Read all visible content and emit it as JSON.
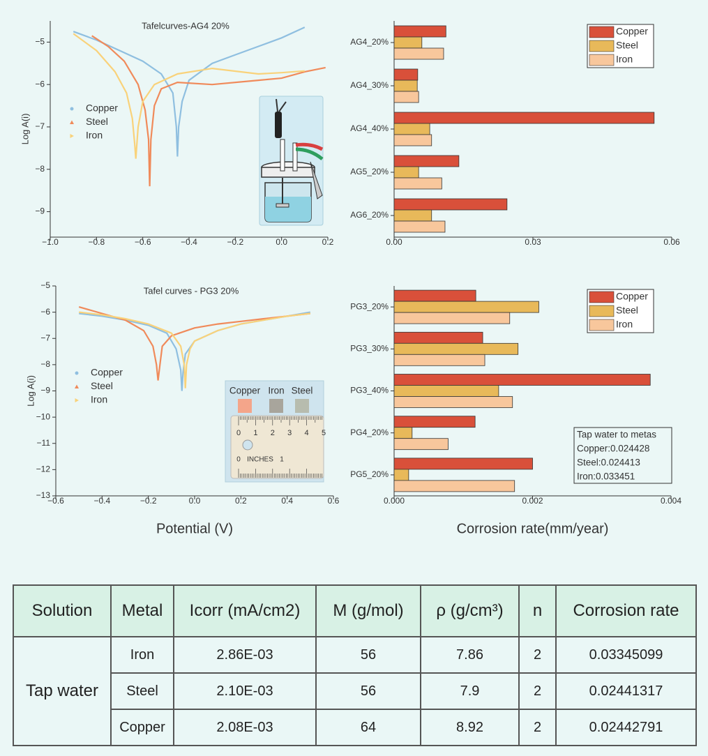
{
  "chart_data": [
    {
      "type": "line",
      "title": "Tafelcurves-AG4 20%",
      "ylabel": "Log A(i)",
      "xlim": [
        -1.0,
        0.2
      ],
      "xticks": [
        {
          "value": -1.0,
          "label": "−1.0"
        },
        {
          "value": -0.8,
          "label": "−0.8"
        },
        {
          "value": -0.6,
          "label": "−0.6"
        },
        {
          "value": -0.4,
          "label": "−0.4"
        },
        {
          "value": -0.2,
          "label": "−0.2"
        },
        {
          "value": 0.0,
          "label": "0.0"
        },
        0.2
      ],
      "ylim": [
        -9.6,
        -4.5
      ],
      "yticks": [
        {
          "value": -5,
          "label": "−5"
        },
        {
          "value": -6,
          "label": "−6"
        },
        {
          "value": -7,
          "label": "−7"
        },
        {
          "value": -8,
          "label": "−8"
        },
        {
          "value": -9,
          "label": "−9"
        }
      ],
      "legend": "center left",
      "series": [
        {
          "name": "Copper",
          "color": "#8fbfe0",
          "marker": "circle",
          "x": [
            -0.9,
            -0.8,
            -0.7,
            -0.6,
            -0.52,
            -0.47,
            -0.455,
            -0.45,
            -0.445,
            -0.43,
            -0.4,
            -0.3,
            -0.2,
            -0.1,
            0.0,
            0.1
          ],
          "values": [
            -4.75,
            -4.95,
            -5.2,
            -5.45,
            -5.75,
            -6.2,
            -7.0,
            -7.7,
            -7.0,
            -6.4,
            -5.9,
            -5.5,
            -5.3,
            -5.1,
            -4.9,
            -4.65
          ]
        },
        {
          "name": "Steel",
          "color": "#f08a5a",
          "marker": "triangle",
          "x": [
            -0.82,
            -0.75,
            -0.68,
            -0.62,
            -0.59,
            -0.575,
            -0.57,
            -0.565,
            -0.55,
            -0.52,
            -0.45,
            -0.3,
            -0.1,
            0.0,
            0.1,
            0.19
          ],
          "values": [
            -4.85,
            -5.1,
            -5.45,
            -6.0,
            -6.6,
            -7.3,
            -8.4,
            -7.3,
            -6.5,
            -6.1,
            -5.95,
            -6.0,
            -5.9,
            -5.85,
            -5.7,
            -5.6
          ]
        },
        {
          "name": "Iron",
          "color": "#f9d27a",
          "marker": "tri-right",
          "x": [
            -0.9,
            -0.8,
            -0.72,
            -0.67,
            -0.645,
            -0.635,
            -0.63,
            -0.62,
            -0.6,
            -0.55,
            -0.45,
            -0.3,
            -0.1,
            0.0,
            0.1
          ],
          "values": [
            -4.8,
            -5.2,
            -5.7,
            -6.2,
            -6.8,
            -7.4,
            -7.75,
            -7.0,
            -6.4,
            -6.0,
            -5.75,
            -5.62,
            -5.75,
            -5.72,
            -5.68
          ]
        }
      ]
    },
    {
      "type": "hbar",
      "categories": [
        "AG4_20%",
        "AG4_30%",
        "AG4_40%",
        "AG5_20%",
        "AG6_20%"
      ],
      "xlim": [
        0,
        0.06
      ],
      "xticks": [
        {
          "value": 0,
          "label": "0.00"
        },
        0.03,
        0.06
      ],
      "legend": "upper right",
      "series": [
        {
          "name": "Copper",
          "color": "#d9503a",
          "values": [
            0.0112,
            0.0051,
            0.0562,
            0.014,
            0.0244
          ]
        },
        {
          "name": "Steel",
          "color": "#e8b95a",
          "values": [
            0.006,
            0.005,
            0.0077,
            0.0053,
            0.0081
          ]
        },
        {
          "name": "Iron",
          "color": "#f8c79c",
          "values": [
            0.0107,
            0.0053,
            0.0081,
            0.0103,
            0.011
          ]
        }
      ]
    },
    {
      "type": "line",
      "title": "Tafel curves - PG3 20%",
      "ylabel": "Log A(i)",
      "xlabel": "Potential (V)",
      "xlim": [
        -0.6,
        0.6
      ],
      "xticks": [
        {
          "value": -0.6,
          "label": "−0.6"
        },
        {
          "value": -0.4,
          "label": "−0.4"
        },
        {
          "value": -0.2,
          "label": "−0.2"
        },
        {
          "value": 0.0,
          "label": "0.0"
        },
        0.2,
        0.4,
        0.6
      ],
      "ylim": [
        -13,
        -5
      ],
      "yticks": [
        {
          "value": -5,
          "label": "−5"
        },
        {
          "value": -6,
          "label": "−6"
        },
        {
          "value": -7,
          "label": "−7"
        },
        {
          "value": -8,
          "label": "−8"
        },
        {
          "value": -9,
          "label": "−9"
        },
        {
          "value": -10,
          "label": "−10"
        },
        {
          "value": -11,
          "label": "−11"
        },
        {
          "value": -12,
          "label": "−12"
        },
        {
          "value": -13,
          "label": "−13"
        }
      ],
      "legend": "center left",
      "inset_labels": [
        "Copper",
        "Iron",
        "Steel"
      ],
      "ruler_labels": [
        "0",
        "1",
        "2",
        "3",
        "4",
        "5"
      ],
      "ruler_inch_labels": [
        "0",
        "INCHES",
        "1"
      ],
      "series": [
        {
          "name": "Copper",
          "color": "#8fbfe0",
          "marker": "circle",
          "x": [
            -0.5,
            -0.4,
            -0.3,
            -0.2,
            -0.12,
            -0.08,
            -0.06,
            -0.055,
            -0.05,
            -0.04,
            0.0,
            0.1,
            0.2,
            0.3,
            0.4,
            0.5
          ],
          "values": [
            -6.05,
            -6.15,
            -6.3,
            -6.5,
            -6.8,
            -7.4,
            -8.2,
            -9.0,
            -8.3,
            -7.6,
            -7.1,
            -6.7,
            -6.45,
            -6.3,
            -6.15,
            -6.0
          ]
        },
        {
          "name": "Steel",
          "color": "#f08a5a",
          "marker": "triangle",
          "x": [
            -0.5,
            -0.4,
            -0.3,
            -0.22,
            -0.18,
            -0.165,
            -0.158,
            -0.15,
            -0.14,
            -0.1,
            0.0,
            0.1,
            0.2,
            0.3,
            0.4,
            0.5
          ],
          "values": [
            -5.8,
            -6.05,
            -6.3,
            -6.7,
            -7.3,
            -8.0,
            -8.6,
            -8.0,
            -7.3,
            -6.9,
            -6.6,
            -6.45,
            -6.35,
            -6.25,
            -6.15,
            -6.05
          ]
        },
        {
          "name": "Iron",
          "color": "#f9d27a",
          "marker": "tri-right",
          "x": [
            -0.5,
            -0.4,
            -0.3,
            -0.2,
            -0.1,
            -0.06,
            -0.045,
            -0.04,
            -0.035,
            -0.02,
            0.0,
            0.1,
            0.2,
            0.3,
            0.4,
            0.5
          ],
          "values": [
            -6.0,
            -6.1,
            -6.25,
            -6.45,
            -6.8,
            -7.3,
            -8.0,
            -8.9,
            -8.0,
            -7.4,
            -7.1,
            -6.7,
            -6.45,
            -6.3,
            -6.15,
            -6.05
          ]
        }
      ]
    },
    {
      "type": "hbar",
      "xlabel": "Corrosion rate(mm/year)",
      "categories": [
        "PG3_20%",
        "PG3_30%",
        "PG3_40%",
        "PG4_20%",
        "PG5_20%"
      ],
      "xlim": [
        0,
        0.004
      ],
      "xticks": [
        {
          "value": 0,
          "label": "0.000"
        },
        0.002,
        0.004
      ],
      "legend": "upper right",
      "annotations": [
        "Tap water to metas",
        "Copper:0.024428",
        "Steel:0.024413",
        "Iron:0.033451"
      ],
      "series": [
        {
          "name": "Copper",
          "color": "#d9503a",
          "values": [
            0.00118,
            0.00128,
            0.0037,
            0.00117,
            0.002
          ]
        },
        {
          "name": "Steel",
          "color": "#e8b95a",
          "values": [
            0.00209,
            0.00179,
            0.00151,
            0.00026,
            0.00021
          ]
        },
        {
          "name": "Iron",
          "color": "#f8c79c",
          "values": [
            0.00167,
            0.00131,
            0.00171,
            0.00078,
            0.00174
          ]
        }
      ]
    }
  ],
  "table": {
    "header": [
      "Solution",
      "Metal",
      "Icorr (mA/cm2)",
      "M (g/mol)",
      "ρ (g/cm³)",
      "n",
      "Corrosion rate"
    ],
    "solution": "Tap water",
    "rows": [
      [
        "Iron",
        "2.86E-03",
        "56",
        "7.86",
        "2",
        "0.03345099"
      ],
      [
        "Steel",
        "2.10E-03",
        "56",
        "7.9",
        "2",
        "0.02441317"
      ],
      [
        "Copper",
        "2.08E-03",
        "64",
        "8.92",
        "2",
        "0.02442791"
      ]
    ]
  }
}
